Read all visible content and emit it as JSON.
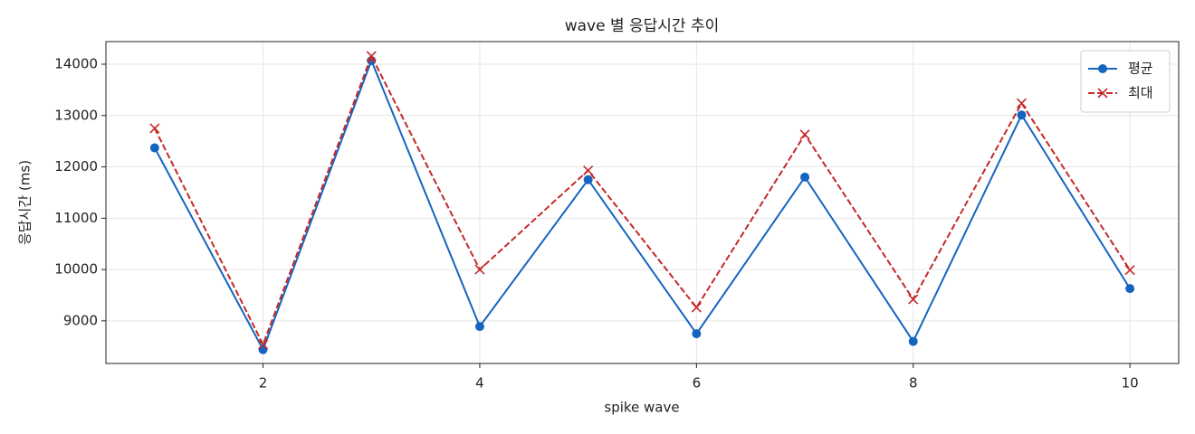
{
  "chart_data": {
    "type": "line",
    "title": "wave 별 응답시간 추이",
    "xlabel": "spike wave",
    "ylabel": "응답시간 (ms)",
    "x": [
      1,
      2,
      3,
      4,
      5,
      6,
      7,
      8,
      9,
      10
    ],
    "series": [
      {
        "name": "평균",
        "color": "#1565c0",
        "marker": "o",
        "linestyle": "solid",
        "values": [
          12370,
          8440,
          14070,
          8890,
          11750,
          8750,
          11800,
          8600,
          13010,
          9630
        ]
      },
      {
        "name": "최대",
        "color": "#c62828",
        "marker": "x",
        "linestyle": "dashed",
        "values": [
          12750,
          8540,
          14160,
          10000,
          11930,
          9260,
          12630,
          9420,
          13240,
          9990
        ]
      }
    ],
    "xlim": [
      0.55,
      10.45
    ],
    "ylim": [
      8170,
      14440
    ],
    "xticks": [
      2,
      4,
      6,
      8,
      10
    ],
    "yticks": [
      9000,
      10000,
      11000,
      12000,
      13000,
      14000
    ],
    "grid": true,
    "legend": "upper right"
  }
}
